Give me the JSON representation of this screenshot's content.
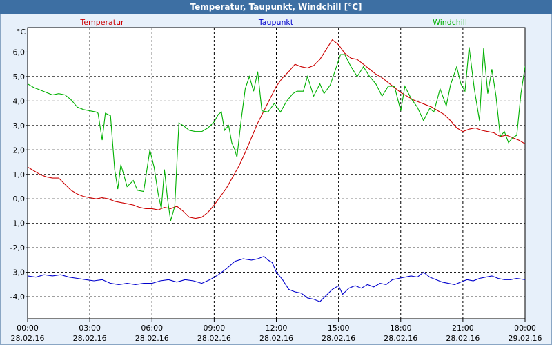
{
  "window": {
    "title": "Temperatur, Taupunkt, Windchill [°C]"
  },
  "colors": {
    "temperatur": "#cc0000",
    "taupunkt": "#0000cc",
    "windchill": "#00b000",
    "frame_bg": "#e7f0fa",
    "title_bg": "#3d6fa3"
  },
  "chart_data": {
    "type": "line",
    "title": "Temperatur, Taupunkt, Windchill [°C]",
    "ylabel": "°C",
    "xlabel": "",
    "ylim": [
      -4.9,
      7.0
    ],
    "xlim_hours": [
      0,
      24
    ],
    "grid": true,
    "legend_placement": "top",
    "yticks": [
      {
        "value": 6,
        "label": "6,0"
      },
      {
        "value": 5,
        "label": "5,0"
      },
      {
        "value": 4,
        "label": "4,0"
      },
      {
        "value": 3,
        "label": "3,0"
      },
      {
        "value": 2,
        "label": "2,0"
      },
      {
        "value": 1,
        "label": "1,0"
      },
      {
        "value": 0,
        "label": "0,0"
      },
      {
        "value": -1,
        "label": "-1,0"
      },
      {
        "value": -2,
        "label": "-2,0"
      },
      {
        "value": -3,
        "label": "-3,0"
      },
      {
        "value": -4,
        "label": "-4,0"
      }
    ],
    "xticks": [
      {
        "hour": 0,
        "time": "00:00",
        "date": "28.02.16"
      },
      {
        "hour": 3,
        "time": "03:00",
        "date": "28.02.16"
      },
      {
        "hour": 6,
        "time": "06:00",
        "date": "28.02.16"
      },
      {
        "hour": 9,
        "time": "09:00",
        "date": "28.02.16"
      },
      {
        "hour": 12,
        "time": "12:00",
        "date": "28.02.16"
      },
      {
        "hour": 15,
        "time": "15:00",
        "date": "28.02.16"
      },
      {
        "hour": 18,
        "time": "18:00",
        "date": "28.02.16"
      },
      {
        "hour": 21,
        "time": "21:00",
        "date": "28.02.16"
      },
      {
        "hour": 24,
        "time": "00:00",
        "date": "29.02.16"
      }
    ],
    "series": [
      {
        "name": "Temperatur",
        "color": "#cc0000",
        "points": [
          [
            0,
            1.3
          ],
          [
            0.3,
            1.15
          ],
          [
            0.6,
            1.0
          ],
          [
            0.9,
            0.9
          ],
          [
            1.2,
            0.85
          ],
          [
            1.5,
            0.85
          ],
          [
            1.8,
            0.6
          ],
          [
            2.1,
            0.35
          ],
          [
            2.4,
            0.2
          ],
          [
            2.7,
            0.1
          ],
          [
            3.0,
            0.05
          ],
          [
            3.3,
            0.0
          ],
          [
            3.6,
            0.05
          ],
          [
            3.9,
            0.0
          ],
          [
            4.2,
            -0.1
          ],
          [
            4.5,
            -0.15
          ],
          [
            4.8,
            -0.2
          ],
          [
            5.1,
            -0.25
          ],
          [
            5.4,
            -0.35
          ],
          [
            5.7,
            -0.4
          ],
          [
            6.0,
            -0.4
          ],
          [
            6.3,
            -0.45
          ],
          [
            6.6,
            -0.35
          ],
          [
            6.9,
            -0.4
          ],
          [
            7.2,
            -0.3
          ],
          [
            7.5,
            -0.5
          ],
          [
            7.8,
            -0.75
          ],
          [
            8.1,
            -0.8
          ],
          [
            8.4,
            -0.75
          ],
          [
            8.7,
            -0.55
          ],
          [
            9.0,
            -0.25
          ],
          [
            9.3,
            0.1
          ],
          [
            9.6,
            0.45
          ],
          [
            9.9,
            0.9
          ],
          [
            10.2,
            1.35
          ],
          [
            10.5,
            1.9
          ],
          [
            10.8,
            2.5
          ],
          [
            11.1,
            3.1
          ],
          [
            11.4,
            3.6
          ],
          [
            11.7,
            4.1
          ],
          [
            12.0,
            4.6
          ],
          [
            12.3,
            4.95
          ],
          [
            12.6,
            5.2
          ],
          [
            12.9,
            5.5
          ],
          [
            13.2,
            5.4
          ],
          [
            13.5,
            5.35
          ],
          [
            13.8,
            5.45
          ],
          [
            14.1,
            5.7
          ],
          [
            14.4,
            6.1
          ],
          [
            14.7,
            6.5
          ],
          [
            15.0,
            6.3
          ],
          [
            15.3,
            5.95
          ],
          [
            15.6,
            5.75
          ],
          [
            15.9,
            5.7
          ],
          [
            16.2,
            5.5
          ],
          [
            16.5,
            5.3
          ],
          [
            16.8,
            5.1
          ],
          [
            17.1,
            4.95
          ],
          [
            17.4,
            4.75
          ],
          [
            17.7,
            4.55
          ],
          [
            18.0,
            4.35
          ],
          [
            18.3,
            4.2
          ],
          [
            18.6,
            4.05
          ],
          [
            18.9,
            3.95
          ],
          [
            19.2,
            3.85
          ],
          [
            19.5,
            3.75
          ],
          [
            19.8,
            3.6
          ],
          [
            20.1,
            3.45
          ],
          [
            20.4,
            3.2
          ],
          [
            20.7,
            2.9
          ],
          [
            21.0,
            2.75
          ],
          [
            21.3,
            2.85
          ],
          [
            21.6,
            2.9
          ],
          [
            21.9,
            2.8
          ],
          [
            22.2,
            2.75
          ],
          [
            22.5,
            2.7
          ],
          [
            22.8,
            2.55
          ],
          [
            23.1,
            2.6
          ],
          [
            23.4,
            2.5
          ],
          [
            23.7,
            2.4
          ],
          [
            24.0,
            2.25
          ]
        ]
      },
      {
        "name": "Taupunkt",
        "color": "#0000cc",
        "points": [
          [
            0,
            -3.15
          ],
          [
            0.4,
            -3.2
          ],
          [
            0.8,
            -3.1
          ],
          [
            1.2,
            -3.15
          ],
          [
            1.6,
            -3.1
          ],
          [
            2.0,
            -3.2
          ],
          [
            2.4,
            -3.25
          ],
          [
            2.8,
            -3.3
          ],
          [
            3.2,
            -3.35
          ],
          [
            3.6,
            -3.3
          ],
          [
            4.0,
            -3.45
          ],
          [
            4.4,
            -3.5
          ],
          [
            4.8,
            -3.45
          ],
          [
            5.2,
            -3.5
          ],
          [
            5.6,
            -3.45
          ],
          [
            6.0,
            -3.45
          ],
          [
            6.4,
            -3.35
          ],
          [
            6.8,
            -3.3
          ],
          [
            7.2,
            -3.4
          ],
          [
            7.6,
            -3.3
          ],
          [
            8.0,
            -3.35
          ],
          [
            8.4,
            -3.45
          ],
          [
            8.8,
            -3.3
          ],
          [
            9.2,
            -3.1
          ],
          [
            9.6,
            -2.85
          ],
          [
            10.0,
            -2.55
          ],
          [
            10.4,
            -2.45
          ],
          [
            10.8,
            -2.5
          ],
          [
            11.1,
            -2.45
          ],
          [
            11.4,
            -2.35
          ],
          [
            11.6,
            -2.5
          ],
          [
            11.8,
            -2.6
          ],
          [
            12.0,
            -3.0
          ],
          [
            12.3,
            -3.3
          ],
          [
            12.6,
            -3.7
          ],
          [
            12.9,
            -3.8
          ],
          [
            13.2,
            -3.85
          ],
          [
            13.5,
            -4.05
          ],
          [
            13.8,
            -4.1
          ],
          [
            14.1,
            -4.2
          ],
          [
            14.4,
            -3.95
          ],
          [
            14.7,
            -3.7
          ],
          [
            15.0,
            -3.55
          ],
          [
            15.2,
            -3.9
          ],
          [
            15.5,
            -3.65
          ],
          [
            15.8,
            -3.55
          ],
          [
            16.1,
            -3.65
          ],
          [
            16.4,
            -3.5
          ],
          [
            16.7,
            -3.6
          ],
          [
            17.0,
            -3.45
          ],
          [
            17.3,
            -3.5
          ],
          [
            17.6,
            -3.3
          ],
          [
            17.9,
            -3.25
          ],
          [
            18.2,
            -3.2
          ],
          [
            18.5,
            -3.15
          ],
          [
            18.8,
            -3.2
          ],
          [
            19.1,
            -3.0
          ],
          [
            19.4,
            -3.2
          ],
          [
            19.7,
            -3.3
          ],
          [
            20.0,
            -3.4
          ],
          [
            20.3,
            -3.45
          ],
          [
            20.6,
            -3.5
          ],
          [
            20.9,
            -3.4
          ],
          [
            21.2,
            -3.3
          ],
          [
            21.5,
            -3.35
          ],
          [
            21.8,
            -3.25
          ],
          [
            22.1,
            -3.2
          ],
          [
            22.4,
            -3.15
          ],
          [
            22.7,
            -3.25
          ],
          [
            23.0,
            -3.3
          ],
          [
            23.3,
            -3.3
          ],
          [
            23.6,
            -3.25
          ],
          [
            24.0,
            -3.3
          ]
        ]
      },
      {
        "name": "Windchill",
        "color": "#00b000",
        "points": [
          [
            0,
            4.7
          ],
          [
            0.3,
            4.55
          ],
          [
            0.6,
            4.45
          ],
          [
            0.9,
            4.35
          ],
          [
            1.2,
            4.25
          ],
          [
            1.5,
            4.3
          ],
          [
            1.8,
            4.25
          ],
          [
            2.1,
            4.05
          ],
          [
            2.4,
            3.75
          ],
          [
            2.7,
            3.65
          ],
          [
            3.0,
            3.6
          ],
          [
            3.3,
            3.55
          ],
          [
            3.4,
            3.5
          ],
          [
            3.6,
            2.4
          ],
          [
            3.75,
            3.5
          ],
          [
            4.0,
            3.4
          ],
          [
            4.2,
            1.2
          ],
          [
            4.35,
            0.4
          ],
          [
            4.5,
            1.4
          ],
          [
            4.8,
            0.5
          ],
          [
            5.1,
            0.75
          ],
          [
            5.3,
            0.35
          ],
          [
            5.6,
            0.3
          ],
          [
            5.9,
            2.0
          ],
          [
            6.1,
            1.3
          ],
          [
            6.3,
            0.2
          ],
          [
            6.45,
            -0.4
          ],
          [
            6.6,
            1.2
          ],
          [
            6.75,
            0.0
          ],
          [
            6.9,
            -0.9
          ],
          [
            7.1,
            -0.3
          ],
          [
            7.3,
            3.1
          ],
          [
            7.5,
            3.0
          ],
          [
            7.8,
            2.8
          ],
          [
            8.1,
            2.75
          ],
          [
            8.4,
            2.75
          ],
          [
            8.7,
            2.9
          ],
          [
            9.0,
            3.15
          ],
          [
            9.2,
            3.45
          ],
          [
            9.35,
            3.55
          ],
          [
            9.5,
            2.8
          ],
          [
            9.7,
            3.0
          ],
          [
            9.85,
            2.3
          ],
          [
            10.0,
            2.0
          ],
          [
            10.1,
            1.7
          ],
          [
            10.3,
            3.2
          ],
          [
            10.5,
            4.5
          ],
          [
            10.7,
            5.0
          ],
          [
            10.9,
            4.4
          ],
          [
            11.1,
            5.2
          ],
          [
            11.3,
            3.6
          ],
          [
            11.6,
            3.55
          ],
          [
            11.9,
            3.9
          ],
          [
            12.2,
            3.55
          ],
          [
            12.5,
            4.0
          ],
          [
            12.8,
            4.3
          ],
          [
            13.0,
            4.4
          ],
          [
            13.3,
            4.4
          ],
          [
            13.5,
            5.0
          ],
          [
            13.8,
            4.2
          ],
          [
            14.1,
            4.7
          ],
          [
            14.3,
            4.3
          ],
          [
            14.6,
            4.65
          ],
          [
            14.9,
            5.4
          ],
          [
            15.1,
            5.9
          ],
          [
            15.3,
            5.9
          ],
          [
            15.6,
            5.4
          ],
          [
            15.9,
            5.0
          ],
          [
            16.2,
            5.4
          ],
          [
            16.5,
            5.0
          ],
          [
            16.8,
            4.7
          ],
          [
            17.1,
            4.2
          ],
          [
            17.4,
            4.6
          ],
          [
            17.7,
            4.6
          ],
          [
            18.0,
            3.6
          ],
          [
            18.2,
            4.6
          ],
          [
            18.5,
            4.1
          ],
          [
            18.8,
            3.75
          ],
          [
            19.1,
            3.2
          ],
          [
            19.4,
            3.7
          ],
          [
            19.6,
            3.55
          ],
          [
            19.9,
            4.5
          ],
          [
            20.2,
            3.8
          ],
          [
            20.4,
            4.65
          ],
          [
            20.7,
            5.4
          ],
          [
            20.9,
            4.7
          ],
          [
            21.1,
            4.4
          ],
          [
            21.3,
            6.2
          ],
          [
            21.55,
            4.5
          ],
          [
            21.8,
            3.2
          ],
          [
            22.0,
            6.15
          ],
          [
            22.2,
            4.3
          ],
          [
            22.4,
            5.3
          ],
          [
            22.6,
            4.2
          ],
          [
            22.8,
            2.55
          ],
          [
            23.0,
            2.75
          ],
          [
            23.2,
            2.3
          ],
          [
            23.4,
            2.5
          ],
          [
            23.6,
            2.6
          ],
          [
            23.8,
            4.3
          ],
          [
            24.0,
            5.4
          ],
          [
            24.2,
            5.8
          ],
          [
            24.4,
            5.6
          ]
        ]
      }
    ]
  }
}
